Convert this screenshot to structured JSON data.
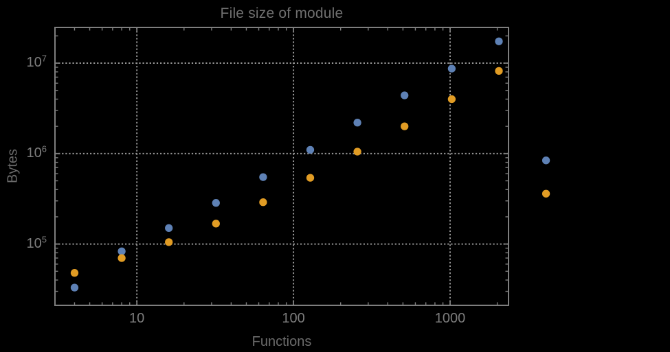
{
  "chart_data": {
    "type": "scatter",
    "title": "File size of module",
    "xlabel": "Functions",
    "ylabel": "Bytes",
    "x_scale": "log",
    "y_scale": "log",
    "xlim": [
      3.0,
      2360
    ],
    "ylim": [
      21000,
      24800000
    ],
    "grid": "dotted lines at decades, framed axes with inward log ticks",
    "legend": "none",
    "x_ticks": [
      {
        "v": 10,
        "label": "10"
      },
      {
        "v": 100,
        "label": "100"
      },
      {
        "v": 1000,
        "label": "1000"
      }
    ],
    "y_ticks": [
      {
        "v": 100000,
        "base": "10",
        "exp": "5"
      },
      {
        "v": 1000000,
        "base": "10",
        "exp": "6"
      },
      {
        "v": 10000000,
        "base": "10",
        "exp": "7"
      }
    ],
    "marker_diameter_px": 11.3,
    "series": [
      {
        "name": "blue",
        "color": "#5E81B5",
        "points": [
          [
            4,
            33000
          ],
          [
            8,
            83000
          ],
          [
            16,
            150000
          ],
          [
            32,
            285000
          ],
          [
            64,
            550000
          ],
          [
            128,
            1100000
          ],
          [
            256,
            2200000
          ],
          [
            512,
            4400000
          ],
          [
            1024,
            8700000
          ],
          [
            2048,
            17400000
          ],
          [
            4096,
            840000
          ]
        ]
      },
      {
        "name": "orange",
        "color": "#E19C24",
        "points": [
          [
            4,
            48000
          ],
          [
            8,
            70000
          ],
          [
            16,
            105000
          ],
          [
            32,
            168000
          ],
          [
            64,
            290000
          ],
          [
            128,
            540000
          ],
          [
            256,
            1050000
          ],
          [
            512,
            2000000
          ],
          [
            1024,
            4000000
          ],
          [
            2048,
            8200000
          ],
          [
            4096,
            360000
          ]
        ]
      }
    ]
  },
  "colors": {
    "background": "#000000",
    "title": "#6f6f6f",
    "axis_label": "#6b6b6b",
    "tick_label": "#7d7d7d",
    "frame": "#7e7e7e",
    "gridline": "#9a9a9a"
  }
}
